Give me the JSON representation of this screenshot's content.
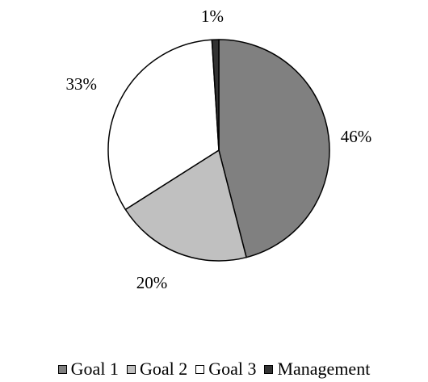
{
  "chart_data": {
    "type": "pie",
    "slices": [
      {
        "name": "Goal 1",
        "value": 46,
        "label": "46%",
        "color": "#808080"
      },
      {
        "name": "Goal 2",
        "value": 20,
        "label": "20%",
        "color": "#c0c0c0"
      },
      {
        "name": "Goal 3",
        "value": 33,
        "label": "33%",
        "color": "#ffffff"
      },
      {
        "name": "Management",
        "value": 1,
        "label": "1%",
        "color": "#333333"
      }
    ],
    "legend_position": "bottom"
  }
}
